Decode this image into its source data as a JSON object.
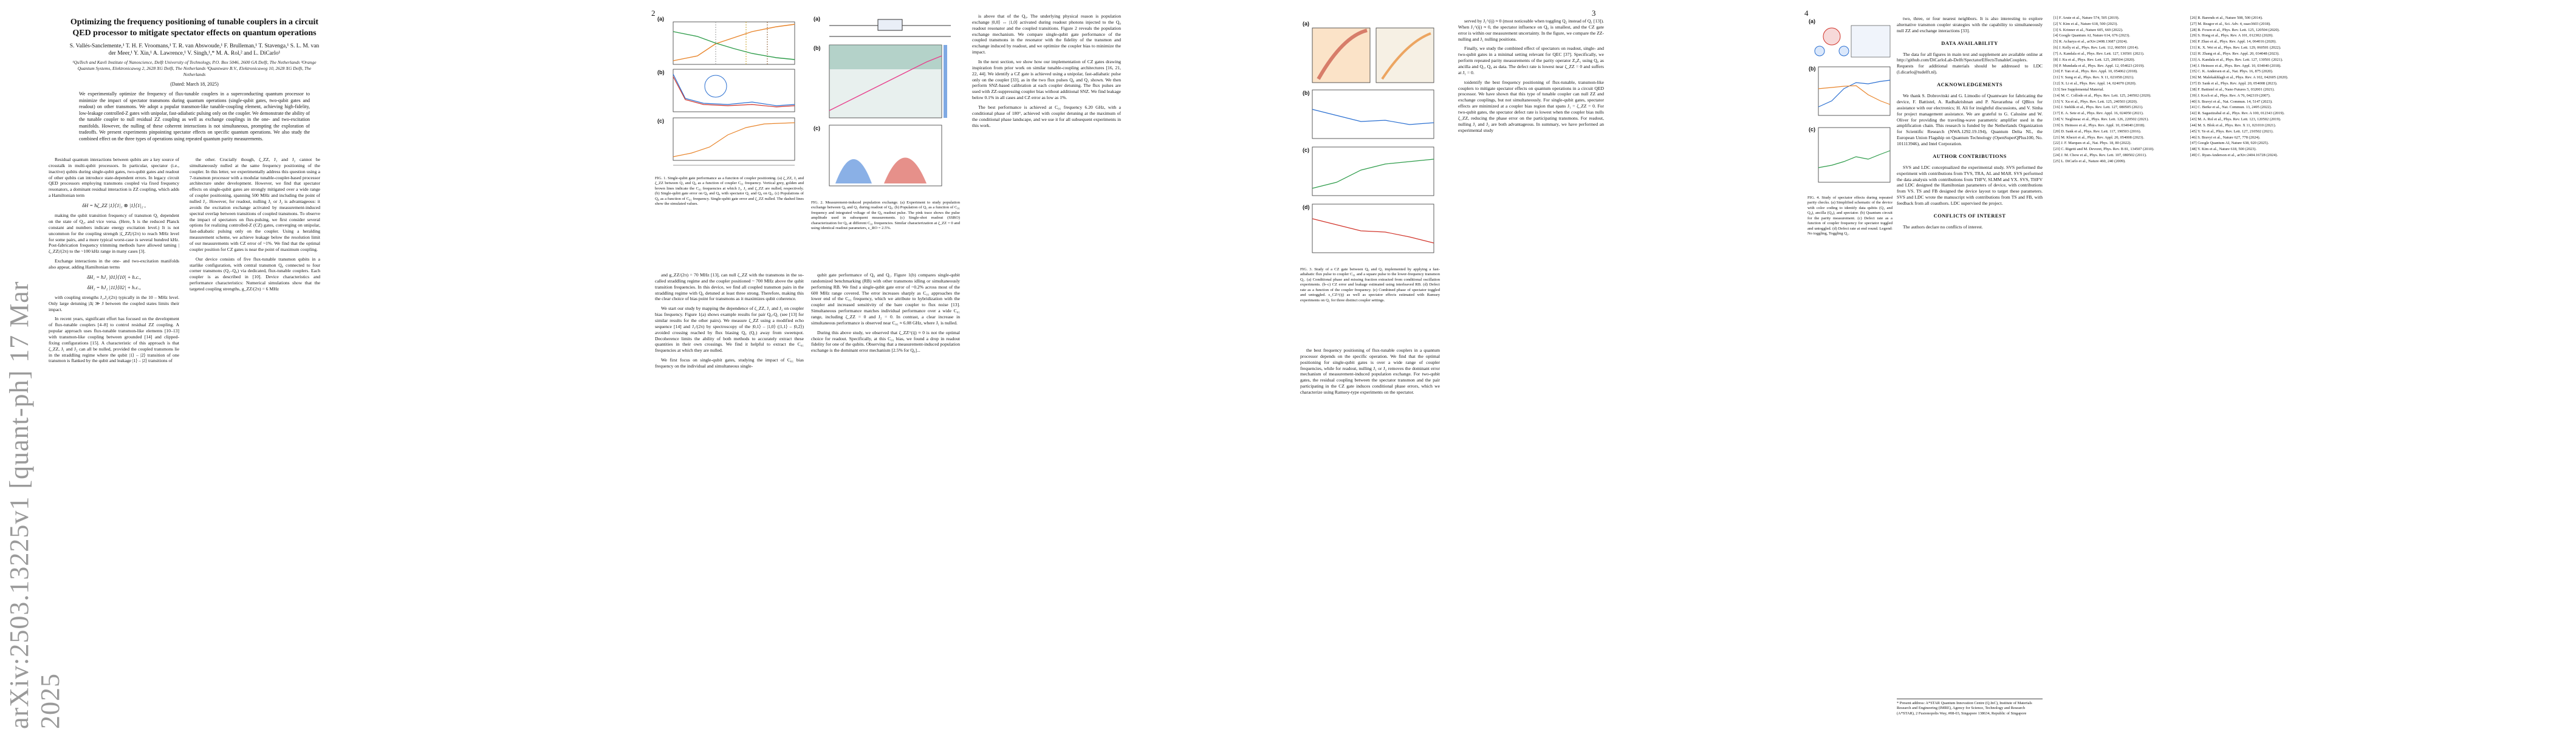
{
  "arxiv_id": "arXiv:2503.13225v1  [quant-ph]  17 Mar 2025",
  "pages": [
    {
      "number": "",
      "left": 0
    },
    {
      "number": "2"
    },
    {
      "number": "3"
    },
    {
      "number": "4"
    }
  ],
  "paper": {
    "title": "Optimizing the frequency positioning of tunable couplers in a circuit QED processor to mitigate spectator effects on quantum operations",
    "authors": "S. Vallés-Sanclemente,¹ T. H. F. Vroomans,¹ T. R. van Abswoude,¹ F. Brulleman,¹ T. Stavenga,¹ S. L. M. van der Meer,¹ Y. Xin,¹ A. Lawrence,¹ V. Singh,¹,* M. A. Rol,² and L. DiCarlo¹",
    "affiliations": "¹QuTech and Kavli Institute of Nanoscience, Delft University of Technology, P.O. Box 5046, 2600 GA Delft, The Netherlands  ²Orange Quantum Systems, Elektronicaweg 2, 2628 XG Delft, The Netherlands  ³Quantware B.V., Elektronicaweg 10, 2628 XG Delft, The Netherlands",
    "date": "(Dated: March 18, 2025)",
    "abstract": "We experimentally optimize the frequency of flux-tunable couplers in a superconducting quantum processor to minimize the impact of spectator transmons during quantum operations (single-qubit gates, two-qubit gates and readout) on other transmons. We adopt a popular transmon-like tunable-coupling element, achieving high-fidelity, low-leakage controlled-Z gates with unipolar, fast-adiabatic pulsing only on the coupler. We demonstrate the ability of the tunable coupler to null residual ZZ coupling as well as exchange couplings in the one- and two-excitation manifolds. However, the nulling of these coherent interactions is not simultaneous, prompting the exploration of tradeoffs. We present experiments pinpointing spectator effects on specific quantum operations. We also study the combined effect on the three types of operations using repeated quantum parity measurements."
  },
  "page1": {
    "col1": "Residual quantum interactions between qubits are a key source of crosstalk in multi-qubit processors. In particular, spectator (i.e., inactive) qubits during single-qubit gates, two-qubit gates and readout of other qubits can introduce state-dependent errors. In legacy circuit QED processors employing transmons coupled via fixed frequency resonators, a dominant residual interaction is ZZ coupling, which adds a Hamiltonian term",
    "eq1": "δH = ħζ_ZZ |1⟩⟨1|₁ ⊗ |1⟩⟨1|₂ ,",
    "col1b": "making the qubit transition frequency of transmon Q₁ dependent on the state of Q₂, and vice versa. (Here, ħ is the reduced Planck constant and numbers indicate energy excitation level.) It is not uncommon for the coupling strength |ζ_ZZ|/(2π) to reach MHz level for some pairs, and a more typical worst-case is several hundred kHz. Post-fabrication frequency trimming methods have allowed taming |ζ_ZZ|/(2π) to the ~100 kHz range in many cases [3].",
    "col1c": "Exchange interactions in the one- and two-excitation manifolds also appear, adding Hamiltonian terms",
    "eq2": "δH₁ = ħJ₁ |01⟩⟨10| + h.c.,",
    "eq3": "δH₂ = ħJ₂ |11⟩⟨02| + h.c.,",
    "col1d": "with coupling strengths J₁,J₂/(2π) typically in the 10 – MHz level. Only large detuning |Δ| ≫ J between the coupled states limits their impact.",
    "col1e": "In recent years, significant effort has focused on the development of flux-tunable couplers [4–8] to control residual ZZ coupling. A popular approach uses flux-tunable transmon-like elements [10–13] with transmon-like coupling between grounded [14] and clipped-fixing configurations [15]. A characteristic of this approach is that ζ_ZZ, J₁ and J₂ can all be nulled, provided the coupled transmons lie in the straddling regime where the qubit |1⟩ – |2⟩ transition of one transmon is flanked by the qubit and leakage |1⟩ – |2⟩ transitions of",
    "col2": "the other. Crucially though, ζ_ZZ, J₁ and J₂ cannot be simultaneously nulled at the same frequency positioning of the coupler. In this letter, we experimentally address this question using a 7-transmon processor with a modular tunable-coupler-based processor architecture under development. However, we find that spectator effects on single-qubit gates are strongly mitigated over a wide range of coupler positioning, spanning 500 MHz and including the point of nulled J₁. However, for readout, nulling J₁ or J₂ is advantageous: it avoids the excitation exchange activated by measurement-induced spectral overlap between transitions of coupled transmons. To observe the impact of spectators on flux-pulsing, we first consider several options for realizing controlled-Z (CZ) gates, converging on unipolar, fast-adiabatic pulsing only on the coupler. Using a heralding measurement scheme, we achieve leakage below the resolution limit of our measurements with CZ error of ~1%. We find that the optimal coupler position for CZ gates is near the point of maximum coupling.",
    "col2b": "Our device consists of five flux-tunable transmon qubits in a starlike configuration, with central transmon Q₀ connected to four corner transmons (Q₁–Q₄) via dedicated, flux-tunable couplers. Each coupler is as described in [10]. Device characteristics and performance characteristics: Numerical simulations show that the targeted coupling strengths, g_ZZ/(2π) = 6 MHz"
  },
  "page2": {
    "fig1_caption": "FIG. 1. Single-qubit gate performance as a function of coupler positioning. (a) ζ_ZZ, J₁ and ζ_ZZ between Q₁ and Q₄ as a function of coupler C₀₁ frequency. Vertical grey, golden and brown lines indicate the C₀₁ frequencies at which J₁, J₂ and ζ_ZZ are nulled, respectively. (b) Single-qubit gate error on Q₀ and Q₄ with spectator Q₁ and Q₄ on Q₀. (c) Populations of Q₀ as a function of C₀₁ frequency. Single-qubit gate error and ζ_ZZ nulled. The dashed lines show the simulated values.",
    "col1": "and g_ZZ/(2π) = 70 MHz [13], can null ζ_ZZ with the transmons in the so-called straddling regime and the coupler positioned ~ 700 MHz above the qubit transition frequencies. In this device, we find all coupled transmon pairs in the straddling regime with Q₀ detuned at least three strong. Therefore, making this the clear choice of bias point for transmons as it maximizes qubit coherence.",
    "col1b": "We start our study by mapping the dependence of ζ_ZZ, J₁ and J₂ on coupler bias frequency. Figure 1(a) shows example results for pair Q₀-Q₁ (see [13] for similar results for the other pairs). We measure ζ_ZZ using a modified echo sequence [14] and J₁/(2π) by spectroscopy of the |0,1⟩ – |1,0⟩ (|1,1⟩ – |0,2⟩) avoided crossing reached by flux biasing Q₀ (Q₁) away from sweetspot. Decoherence limits the ability of both methods to accurately extract these quantities in their own crossings. We find it helpful to extract the C₀₁ frequencies at which they are nulled.",
    "col1c": "We first focus on single-qubit gates, studying the impact of C₀₁ bias frequency on the individual and simultaneous single-",
    "fig2_caption": "FIG. 2. Measurement-induced population exchange. (a) Experiment to study population exchange between Q₀ and Q₁ during readout of Q₀. (b) Population of Q₁ as a function of C₀₁ frequency and integrated voltage of the Q₀ readout pulse. The pink trace shows the pulse amplitude used in subsequent measurements. (c) Single-shot readout (SSRO) characterization for Q₀ at different C₀₁ frequencies. Similar characterization at ζ_ZZ = 0 and using identical readout parameters, ε_RO = 2.5%.",
    "col2": "qubit gate performance of Q₀ and Q₁. Figure 1(b) compares single-qubit randomized benchmarking (RB) with other transmons idling or simultaneously performing RB. We find a single-qubit gate error of ~0.2% across most of the 600 MHz range covered. The error increases sharply as C₀₁ approaches the lower end of the C₀₁ frequency, which we attribute to hybridization with the coupler and increased sensitivity of the bare coupler to flux noise [13]. Simultaneous performance matches individual performance over a wide C₀₁ range, including ζ_ZZ = 0 and J₂ = 0. In contrast, a clear increase in simultaneous performance is observed near C₀₁ ≈ 6.08 GHz, where J₁ is nulled.",
    "col2b": "During this above study, we observed that ζ_ZZ^(ij) ≈ 0 is not the optimal choice for readout. Specifically, at this C₀₁ bias, we found a drop in readout fidelity for one of the qubits. Observing that a measurement-induced population exchange is the dominant error mechanism [2.5% for Q₀]...",
    "col3": "is above that of the Q₀. The underlying physical reason is population exchange |0,0⟩ ↔ |1,0⟩ activated during readout photons injected to the Q₀ readout resonator and the coupled transitions. Figure 2 reveals the population exchange mechanism. We compare single-qubit gate performance of the coupled transmons in the resonator with the fidelity of the transmon and exchange induced by readout, and we optimize the coupler bias to minimize the impact.",
    "col3b": "In the next section, we show how our implementation of CZ gates drawing inspiration from prior work on similar tunable-coupling architectures [16, 21, 22, 44]. We identify a CZ gate is achieved using a unipolar, fast-adiabatic pulse only on the coupler [33], as in the two flux pulses Q₀ and Q₁ shown. We then perform SNZ-based calibration at each coupler detuning. The flux pulses are used with ZZ-suppressing coupler bias without additional SNZ. We find leakage below 0.1% in all cases and CZ error as low as 1%.",
    "col3c": "The best performance is achieved at C₀₁ frequency 6.20 GHz, with a conditional phase of 180°, achieved with coupler detuning at the maximum of the conditional phase landscape, and we use it for all subsequent experiments in this work."
  },
  "page3": {
    "fig3_caption": "FIG. 3. Study of a CZ gate between Q₀ and Q₁ implemented by applying a fast-adiabatic flux pulse to coupler C₀₁ and a square pulse to the lower-frequency transmon Q₁. (a) Conditional phase and missing fraction extracted from conditional oscillation experiments. (b–c) CZ error and leakage estimated using interleaved RB. (d) Defect rate as a function of the coupler frequency. (e) Combined phase of spectator toggled and untoggled. ε_CZ^(ij) as well as spectator effects estimated with Ramsey experiments on Q₁ for three distinct coupler settings.",
    "col1": "the best frequency positioning of flux-tunable couplers in a quantum processor depends on the specific operation. We find that the optimal positioning for single-qubit gates is over a wide range of coupler frequencies, while for readout, nulling J₁ or J₂ removes the dominant error mechanism of measurement-induced population exchange. For two-qubit gates, the residual coupling between the spectator transmon and the pair participating in the CZ gate induces conditional phase errors, which we characterize using Ramsey-type experiments on the spectator.",
    "col2": "toidentify the best frequency positioning of flux-tunable, transmon-like couplers to mitigate spectator effects on quantum operations in a circuit QED processor. We have shown that this type of tunable coupler can null ZZ and exchange couplings, but not simultaneously. For single-qubit gates, spectator effects are minimized at a coupler bias region that spans J₁ = ζ_ZZ = 0. For two-qubit gates, the spectator defect rate is lowest when the coupler bias nulls ζ_ZZ, reducing the phase error on the participating transmons. For readout, nulling J₁ and J₂ are both advantageous. In summary, we have performed an experimental study",
    "col2b": "served by J₁^(ij) ≈ 0 (most noticeable when toggling Q₂ instead of Q₁ [13]). When J₁^(ij) ≈ 0, the spectator influence on Q₀ is smallest, and the CZ gate error is within our measurement uncertainty. In the figure, we compare the ZZ-nulling and J₁ nulling positions.",
    "col2c": "Finally, we study the combined effect of spectators on readout, single- and two-qubit gates in a minimal setting relevant for QEC [37]. Specifically, we perform repeated parity measurements of the parity operator Z₀Z₁ using Q₀ as ancilla and Q₁, Q₄ as data. The defect rate is lowest near ζ_ZZ = 0 and suffers at J₁ = 0."
  },
  "page4": {
    "fig4_caption": "FIG. 4. Study of spectator effects during repeated parity checks. (a) Simplified schematic of the device with color coding to identify data qubits (Q₁ and Q₄), ancilla (Q₀), and spectator. (b) Quantum circuit for the parity measurement. (c) Defect rate as a function of coupler frequency for spectator toggled and untoggled. (d) Defect rate at end round. Legend: No toggling, Toggling Q₂.",
    "col1": "two, three, or four nearest neighbors. It is also interesting to explore alternative transmon coupler strategies with the capability to simultaneously null ZZ and exchange interactions [33].",
    "data_head": "DATA AVAILABILITY",
    "data_text": "The data for all figures in main text and supplement are available online at http://github.com/DiCarloLab-Delft/SpectatorEffectsTunableCouplers. Requests for additional materials should be addressed to LDC (l.dicarlo@tudelft.nl).",
    "ack_head": "ACKNOWLEDGEMENTS",
    "ack_text": "We thank S. Dobrovitski and G. Limodio of Quantware for fabricating the device, F. Battistel, A. Radhakrishnan and P. Navarathna of QBlox for assistance with our electronics; H. Ali for insightful discussions, and V. Sinha for project management assistance. We are grateful to G. Calusine and W. Oliver for providing the traveling-wave parametric amplifier used in the amplification chain. This research is funded by the Netherlands Organization for Scientific Research (NWA.1292.19.194), Quantum Delta NL, the European Union Flagship on Quantum Technology (OpenSuperQPlus100, No. 101113946), and Intel Corporation.",
    "contrib_head": "AUTHOR CONTRIBUTIONS",
    "contrib_text": "SVS and LDC conceptualized the experimental study. SVS performed the experiment with contributions from TVS, TRA, AL and MAR. SVS performed the data analysis with contributions from THFV, SLMM and YX. SVS, THFV and LDC designed the Hamiltonian parameters of device, with contributions from VS. TS and FB designed the device layout to target these parameters. SVS and LDC wrote the manuscript with contributions from TS and FB, with feedback from all coauthors. LDC supervised the project.",
    "coi_head": "CONFLICTS OF INTEREST",
    "coi_text": "The authors declare no conflicts of interest.",
    "footnote": "* Present address: A*STAR Quantum Innovation Centre (Q.InC), Institute of Materials Research and Engineering (IMRE), Agency for Science, Technology and Research (A*STAR), 2 Fusionopolis Way, #08-03, Singapore 138634, Republic of Singapore",
    "refs_col1": [
      "[1] F. Arute et al., Nature 574, 505 (2019).",
      "[2] Y. Kim et al., Nature 618, 500 (2023).",
      "[3] S. Krinner et al., Nature 605, 669 (2022).",
      "[4] Google Quantum AI, Nature 614, 676 (2023).",
      "[5] R. Acharya et al., arXiv:2408.13687 (2024).",
      "[6] J. Kelly et al., Phys. Rev. Lett. 112, 060501 (2014).",
      "[7] A. Kandala et al., Phys. Rev. Lett. 127, 130501 (2021).",
      "[8] J. Ku et al., Phys. Rev. Lett. 125, 200504 (2020).",
      "[9] P. Mundada et al., Phys. Rev. Appl. 12, 054023 (2019).",
      "[10] F. Yan et al., Phys. Rev. Appl. 10, 054062 (2018).",
      "[11] Y. Sung et al., Phys. Rev. X 11, 021058 (2021).",
      "[12] X. Li et al., Phys. Rev. Appl. 14, 024070 (2020).",
      "[13] See Supplemental Material.",
      "[14] M. C. Collodo et al., Phys. Rev. Lett. 125, 240502 (2020).",
      "[15] Y. Xu et al., Phys. Rev. Lett. 125, 240503 (2020).",
      "[16] J. Stehlik et al., Phys. Rev. Lett. 127, 080505 (2021).",
      "[17] E. A. Sete et al., Phys. Rev. Appl. 16, 024050 (2021).",
      "[18] V. Negîrneac et al., Phys. Rev. Lett. 126, 220502 (2021).",
      "[19] S. Heinsoo et al., Phys. Rev. Appl. 10, 034040 (2018).",
      "[20] D. Sank et al., Phys. Rev. Lett. 117, 190503 (2016).",
      "[21] M. Khezri et al., Phys. Rev. Appl. 20, 054008 (2023).",
      "[22] J. F. Marques et al., Nat. Phys. 18, 80 (2022).",
      "[23] C. Rigetti and M. Devoret, Phys. Rev. B 81, 134507 (2010).",
      "[24] J. M. Chow et al., Phys. Rev. Lett. 107, 080502 (2011).",
      "[25] L. DiCarlo et al., Nature 460, 240 (2009)."
    ],
    "refs_col2": [
      "[26] R. Barends et al., Nature 508, 500 (2014).",
      "[27] M. Reagor et al., Sci. Adv. 4, eaao3603 (2018).",
      "[28] B. Foxen et al., Phys. Rev. Lett. 125, 120504 (2020).",
      "[29] S. Hong et al., Phys. Rev. A 101, 012302 (2020).",
      "[30] P. Zhao et al., Phys. Rev. Appl. 14, 064016 (2020).",
      "[31] K. X. Wei et al., Phys. Rev. Lett. 129, 060501 (2022).",
      "[32] H. Zhang et al., Phys. Rev. Appl. 20, 034048 (2023).",
      "[33] A. Kandala et al., Phys. Rev. Lett. 127, 130501 (2021).",
      "[34] J. Heinsoo et al., Phys. Rev. Appl. 10, 034040 (2018).",
      "[35] C. K. Andersen et al., Nat. Phys. 16, 875 (2020).",
      "[36] M. Malekakhlagh et al., Phys. Rev. A 102, 042605 (2020).",
      "[37] D. Sank et al., Phys. Rev. Appl. 20, 054008 (2023).",
      "[38] F. Battistel et al., Nano Futures 5, 032001 (2021).",
      "[39] J. Koch et al., Phys. Rev. A 76, 042319 (2007).",
      "[40] S. Bravyi et al., Nat. Commun. 14, 5147 (2023).",
      "[41] C. Berke et al., Nat. Commun. 13, 2495 (2022).",
      "[42] R. Sagastizabal et al., Phys. Rev. A 100, 012343 (2019).",
      "[43] M. A. Rol et al., Phys. Rev. Lett. 123, 120502 (2019).",
      "[44] M. S. Blok et al., Phys. Rev. X 11, 021010 (2021).",
      "[45] Y. Ye et al., Phys. Rev. Lett. 127, 210502 (2021).",
      "[46] S. Bravyi et al., Nature 627, 778 (2024).",
      "[47] Google Quantum AI, Nature 638, 920 (2025).",
      "[48] Y. Kim et al., Nature 618, 500 (2023).",
      "[49] C. Ryan-Anderson et al., arXiv:2404.16728 (2024)."
    ]
  },
  "colors": {
    "accent_link": "#1f5fbf",
    "curve_orange": "#e8842a",
    "curve_green": "#2e9c4a",
    "curve_blue": "#2a6fd1",
    "curve_red": "#d1342a",
    "grey": "#9a9a9a"
  }
}
